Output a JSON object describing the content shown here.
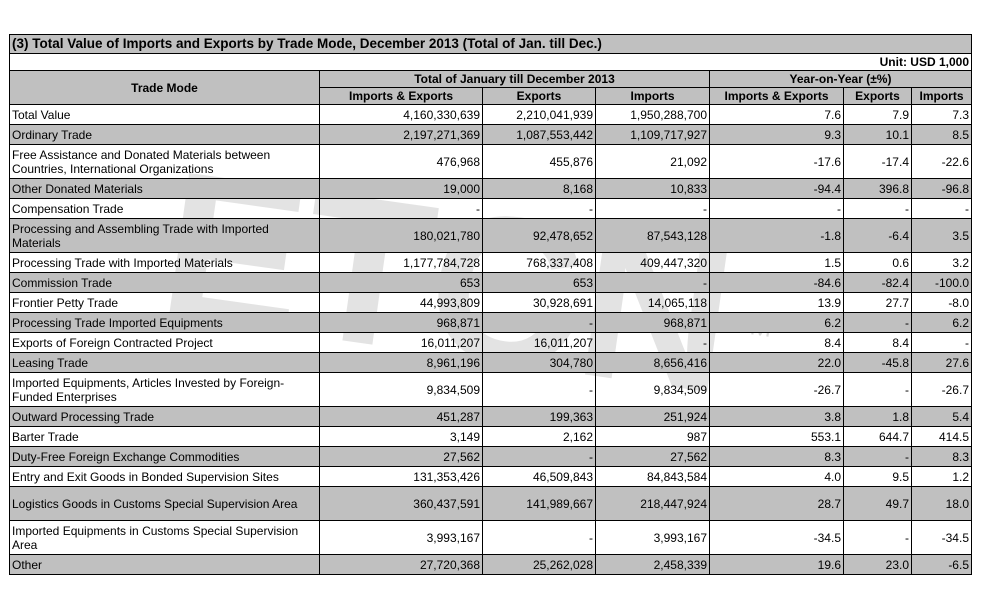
{
  "title": "(3) Total Value of Imports and Exports by Trade Mode, December 2013 (Total of Jan. till Dec.)",
  "unit": "Unit: USD 1,000",
  "header": {
    "trade_mode": "Trade Mode",
    "group_total": "Total of January till December 2013",
    "group_yoy": "Year-on-Year (±%)",
    "columns": [
      "Imports & Exports",
      "Exports",
      "Imports",
      "Imports & Exports",
      "Exports",
      "Imports"
    ]
  },
  "watermark": "ETCN",
  "watermark_tm": "TM",
  "colors": {
    "header_bg": "#c0c0c0",
    "shade_bg": "#c0c0c0",
    "watermark": "#d9d9d9"
  },
  "rows": [
    {
      "label": "Total Value",
      "vals": [
        "4,160,330,639",
        "2,210,041,939",
        "1,950,288,700",
        "7.6",
        "7.9",
        "7.3"
      ]
    },
    {
      "label": "Ordinary Trade",
      "vals": [
        "2,197,271,369",
        "1,087,553,442",
        "1,109,717,927",
        "9.3",
        "10.1",
        "8.5"
      ]
    },
    {
      "label": "Free Assistance and Donated Materials between Countries, International Organizations",
      "vals": [
        "476,968",
        "455,876",
        "21,092",
        "-17.6",
        "-17.4",
        "-22.6"
      ]
    },
    {
      "label": "Other Donated Materials",
      "vals": [
        "19,000",
        "8,168",
        "10,833",
        "-94.4",
        "396.8",
        "-96.8"
      ]
    },
    {
      "label": "Compensation Trade",
      "vals": [
        "-",
        "-",
        "-",
        "-",
        "-",
        "-"
      ]
    },
    {
      "label": "Processing and Assembling Trade with Imported Materials",
      "vals": [
        "180,021,780",
        "92,478,652",
        "87,543,128",
        "-1.8",
        "-6.4",
        "3.5"
      ]
    },
    {
      "label": "Processing Trade with Imported Materials",
      "vals": [
        "1,177,784,728",
        "768,337,408",
        "409,447,320",
        "1.5",
        "0.6",
        "3.2"
      ]
    },
    {
      "label": "Commission Trade",
      "vals": [
        "653",
        "653",
        "-",
        "-84.6",
        "-82.4",
        "-100.0"
      ]
    },
    {
      "label": "Frontier Petty Trade",
      "vals": [
        "44,993,809",
        "30,928,691",
        "14,065,118",
        "13.9",
        "27.7",
        "-8.0"
      ]
    },
    {
      "label": "Processing Trade Imported Equipments",
      "vals": [
        "968,871",
        "-",
        "968,871",
        "6.2",
        "-",
        "6.2"
      ]
    },
    {
      "label": "Exports of Foreign Contracted Project",
      "vals": [
        "16,011,207",
        "16,011,207",
        "-",
        "8.4",
        "8.4",
        "-"
      ]
    },
    {
      "label": "Leasing Trade",
      "vals": [
        "8,961,196",
        "304,780",
        "8,656,416",
        "22.0",
        "-45.8",
        "27.6"
      ]
    },
    {
      "label": "Imported Equipments, Articles Invested by Foreign-Funded Enterprises",
      "vals": [
        "9,834,509",
        "-",
        "9,834,509",
        "-26.7",
        "-",
        "-26.7"
      ]
    },
    {
      "label": "Outward Processing Trade",
      "vals": [
        "451,287",
        "199,363",
        "251,924",
        "3.8",
        "1.8",
        "5.4"
      ]
    },
    {
      "label": "Barter Trade",
      "vals": [
        "3,149",
        "2,162",
        "987",
        "553.1",
        "644.7",
        "414.5"
      ]
    },
    {
      "label": "Duty-Free Foreign Exchange Commodities",
      "vals": [
        "27,562",
        "-",
        "27,562",
        "8.3",
        "-",
        "8.3"
      ]
    },
    {
      "label": "Entry and Exit Goods in Bonded Supervision Sites",
      "vals": [
        "131,353,426",
        "46,509,843",
        "84,843,584",
        "4.0",
        "9.5",
        "1.2"
      ]
    },
    {
      "label": "Logistics Goods in Customs Special Supervision Area",
      "vals": [
        "360,437,591",
        "141,989,667",
        "218,447,924",
        "28.7",
        "49.7",
        "18.0"
      ]
    },
    {
      "label": "Imported Equipments in Customs Special Supervision Area",
      "vals": [
        "3,993,167",
        "-",
        "3,993,167",
        "-34.5",
        "-",
        "-34.5"
      ]
    },
    {
      "label": "Other",
      "vals": [
        "27,720,368",
        "25,262,028",
        "2,458,339",
        "19.6",
        "23.0",
        "-6.5"
      ]
    }
  ]
}
